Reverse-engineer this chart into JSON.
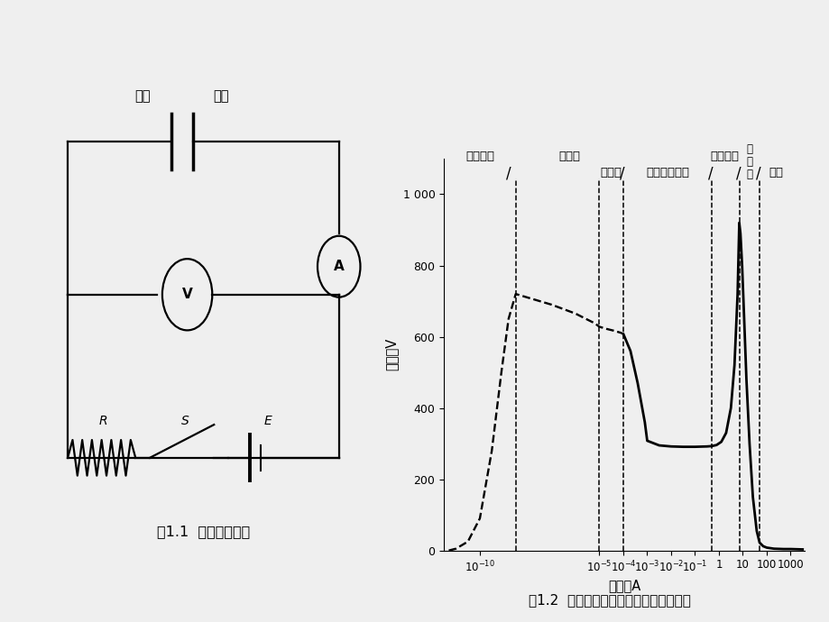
{
  "bg_color": "#efefef",
  "fig_title1": "图1.1  直流放电回路",
  "fig_title2": "图1.2  直流放电形式及电流与电压的关系",
  "ylabel": "电压／V",
  "xlabel": "电流／A",
  "ytick_labels": [
    "0",
    "200",
    "400",
    "600",
    "800",
    "1 000"
  ],
  "ytick_vals": [
    0,
    200,
    400,
    600,
    800,
    1000
  ],
  "xtick_positions": [
    -10,
    -5,
    -4,
    -3,
    -2,
    -1,
    0,
    1,
    2,
    3
  ],
  "vline_x": [
    -8.5,
    -5.0,
    -4.0,
    -0.3,
    0.85,
    1.7
  ],
  "xlim": [
    -11.5,
    3.6
  ],
  "ylim": [
    0,
    1100
  ]
}
